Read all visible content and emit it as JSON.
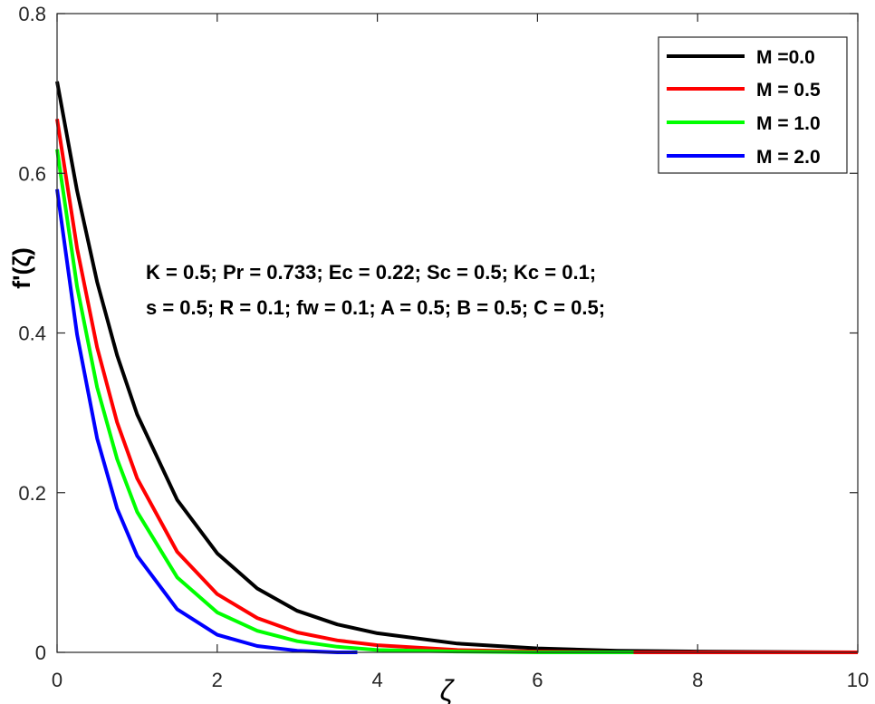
{
  "chart_data": {
    "type": "line",
    "xlabel": "ζ",
    "ylabel": "f'(ζ)",
    "xlim": [
      0,
      10
    ],
    "ylim": [
      0,
      0.8
    ],
    "xticks": [
      0,
      2,
      4,
      6,
      8,
      10
    ],
    "yticks": [
      0,
      0.2,
      0.4,
      0.6,
      0.8
    ],
    "x_tick_labels": [
      "0",
      "2",
      "4",
      "6",
      "8",
      "10"
    ],
    "y_tick_labels": [
      "0",
      "0.2",
      "0.4",
      "0.6",
      "0.8"
    ],
    "grid": false,
    "legend_position": "top-right",
    "annotation_lines": [
      "K = 0.5; Pr = 0.733; Ec = 0.22; Sc = 0.5; Kc = 0.1;",
      "s = 0.5; R = 0.1; fw = 0.1; A = 0.5; B = 0.5; C = 0.5;"
    ],
    "series": [
      {
        "name": "M =0.0",
        "color": "#000000",
        "x": [
          0,
          0.25,
          0.5,
          0.75,
          1,
          1.5,
          2,
          2.5,
          3,
          3.5,
          4,
          5,
          6,
          7,
          8,
          10
        ],
        "y": [
          0.715,
          0.578,
          0.464,
          0.372,
          0.298,
          0.191,
          0.124,
          0.08,
          0.052,
          0.035,
          0.024,
          0.011,
          0.005,
          0.002,
          0.001,
          0
        ]
      },
      {
        "name": "M = 0.5",
        "color": "#ff0000",
        "x": [
          0,
          0.25,
          0.5,
          0.75,
          1,
          1.5,
          2,
          2.5,
          3,
          3.5,
          4,
          5,
          6,
          7,
          8,
          10
        ],
        "y": [
          0.668,
          0.506,
          0.382,
          0.288,
          0.218,
          0.126,
          0.073,
          0.043,
          0.025,
          0.015,
          0.009,
          0.003,
          0.001,
          0,
          0,
          0
        ]
      },
      {
        "name": "M = 1.0",
        "color": "#00ff00",
        "x": [
          0,
          0.25,
          0.5,
          0.75,
          1,
          1.5,
          2,
          2.5,
          3,
          3.5,
          4,
          5,
          6,
          7.2
        ],
        "y": [
          0.63,
          0.458,
          0.332,
          0.242,
          0.176,
          0.094,
          0.05,
          0.027,
          0.014,
          0.007,
          0.003,
          0.001,
          0,
          0
        ]
      },
      {
        "name": "M = 2.0",
        "color": "#0000ff",
        "x": [
          0,
          0.25,
          0.5,
          0.75,
          1,
          1.5,
          2,
          2.5,
          3,
          3.5,
          3.75
        ],
        "y": [
          0.58,
          0.398,
          0.268,
          0.18,
          0.121,
          0.054,
          0.022,
          0.008,
          0.002,
          0,
          0
        ]
      }
    ]
  }
}
